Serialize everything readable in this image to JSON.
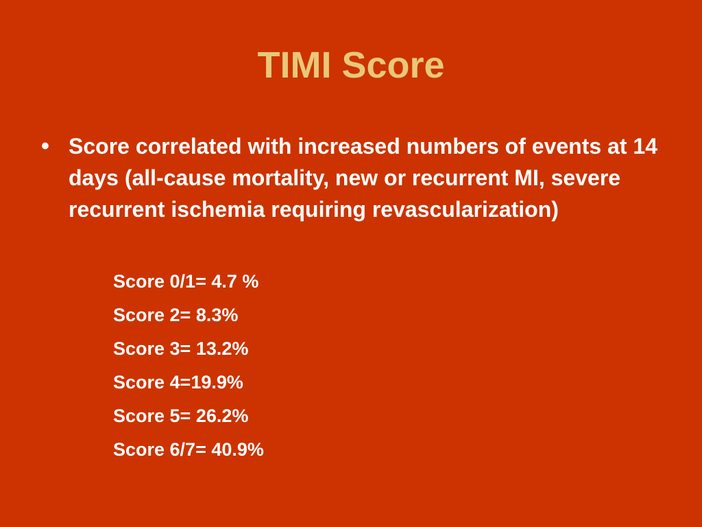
{
  "slide": {
    "title": "TIMI Score",
    "bullet_marker": "•",
    "bullet_text": "Score correlated with increased numbers of events at 14 days (all-cause mortality, new or recurrent MI, severe recurrent ischemia requiring revascularization)",
    "scores": [
      "Score 0/1= 4.7 %",
      "Score 2= 8.3%",
      "Score 3= 13.2%",
      "Score 4=19.9%",
      "Score 5= 26.2%",
      "Score 6/7= 40.9%"
    ]
  },
  "colors": {
    "background": "#CC3300",
    "title": "#E8C878",
    "body_text": "#FFFFFF"
  }
}
